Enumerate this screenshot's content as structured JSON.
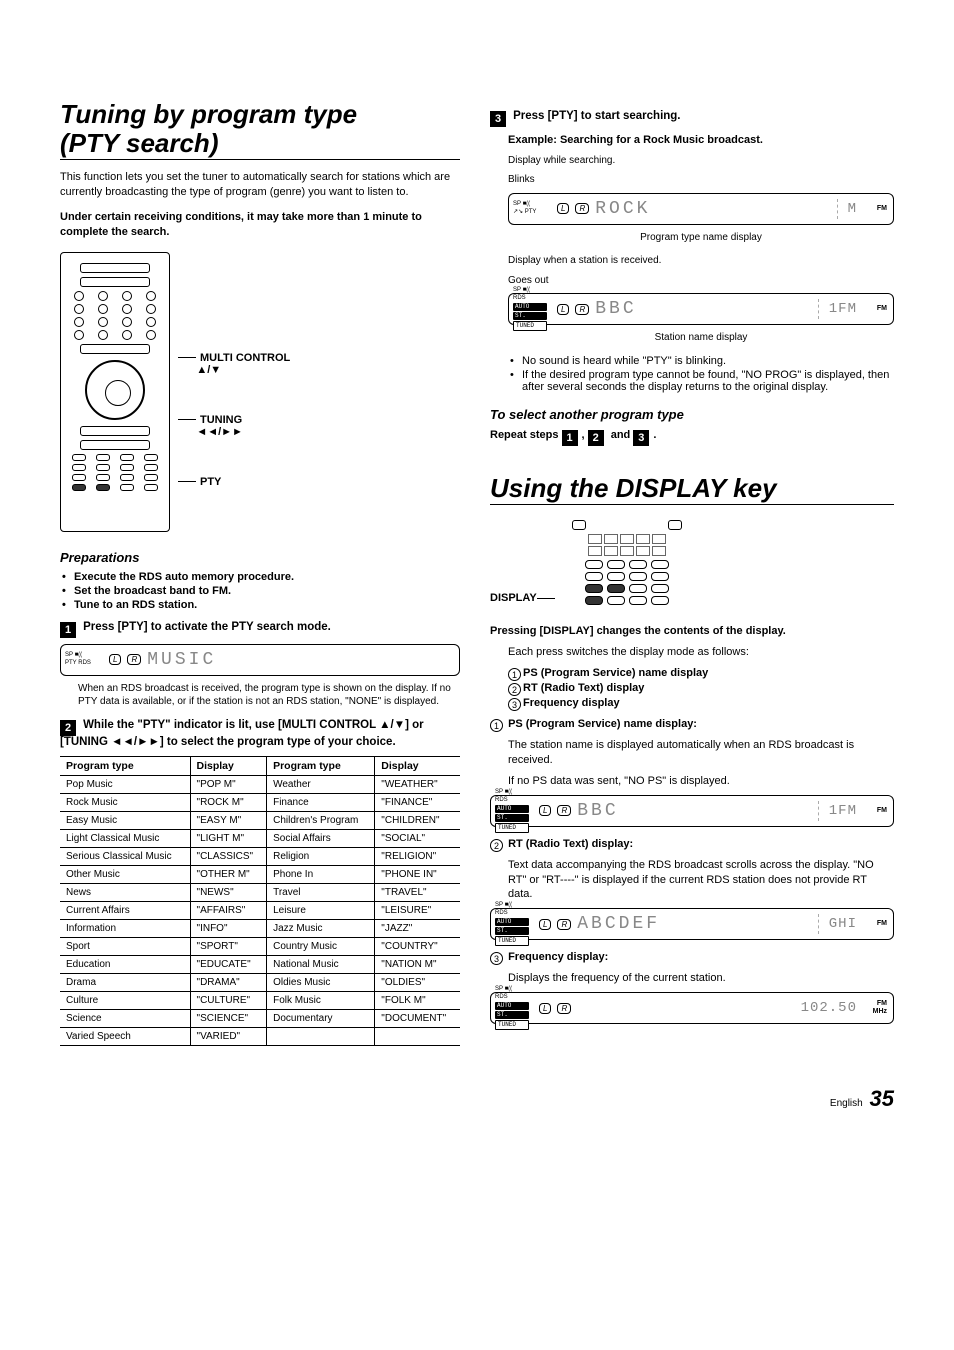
{
  "left": {
    "h1_line1": "Tuning by program type",
    "h1_line2": "(PTY search)",
    "intro": "This function lets you set the tuner to automatically search for stations which are currently broadcasting the type of program (genre) you want to listen to.",
    "warn": "Under certain receiving conditions, it may take more than 1 minute to complete the search.",
    "remote_labels": {
      "multi": "MULTI CONTROL",
      "multi_glyph": "▲/▼",
      "tuning": "TUNING",
      "tuning_glyph": "◄◄/►►",
      "pty": "PTY"
    },
    "prep_h": "Preparations",
    "prep_items": [
      "Execute the RDS auto memory procedure.",
      "Set the broadcast band to FM.",
      "Tune to an RDS station."
    ],
    "step1": "Press [PTY] to activate the PTY search mode.",
    "lcd1_ind_top": "SP ■((",
    "lcd1_pty": "PTY",
    "lcd1_rds": "RDS",
    "lcd1_seg": "MUSIC",
    "step1_note": "When an RDS broadcast is received, the program type is shown on the display. If no PTY data is available, or if the station is not an RDS station, \"NONE\" is displayed.",
    "step2_a": "While the \"PTY\" indicator is lit, use [MULTI CONTROL ",
    "step2_b": "] or [TUNING ",
    "step2_c": "] to select the program type of your choice.",
    "step2_glyph1": "▲/▼",
    "step2_glyph2": "◄◄/►►",
    "table_headers": [
      "Program type",
      "Display",
      "Program type",
      "Display"
    ],
    "table_rows": [
      [
        "Pop Music",
        "\"POP M\"",
        "Weather",
        "\"WEATHER\""
      ],
      [
        "Rock Music",
        "\"ROCK M\"",
        "Finance",
        "\"FINANCE\""
      ],
      [
        "Easy Music",
        "\"EASY M\"",
        "Children's Program",
        "\"CHILDREN\""
      ],
      [
        "Light Classical Music",
        "\"LIGHT M\"",
        "Social Affairs",
        "\"SOCIAL\""
      ],
      [
        "Serious Classical Music",
        "\"CLASSICS\"",
        "Religion",
        "\"RELIGION\""
      ],
      [
        "Other Music",
        "\"OTHER M\"",
        "Phone In",
        "\"PHONE IN\""
      ],
      [
        "News",
        "\"NEWS\"",
        "Travel",
        "\"TRAVEL\""
      ],
      [
        "Current Affairs",
        "\"AFFAIRS\"",
        "Leisure",
        "\"LEISURE\""
      ],
      [
        "Information",
        "\"INFO\"",
        "Jazz Music",
        "\"JAZZ\""
      ],
      [
        "Sport",
        "\"SPORT\"",
        "Country Music",
        "\"COUNTRY\""
      ],
      [
        "Education",
        "\"EDUCATE\"",
        "National Music",
        "\"NATION M\""
      ],
      [
        "Drama",
        "\"DRAMA\"",
        "Oldies Music",
        "\"OLDIES\""
      ],
      [
        "Culture",
        "\"CULTURE\"",
        "Folk Music",
        "\"FOLK M\""
      ],
      [
        "Science",
        "\"SCIENCE\"",
        "Documentary",
        "\"DOCUMENT\""
      ],
      [
        "Varied Speech",
        "\"VARIED\"",
        "",
        ""
      ]
    ]
  },
  "right": {
    "step3": "Press [PTY] to start searching.",
    "example": "Example: Searching for a Rock Music broadcast.",
    "searching_label": "Display while searching.",
    "blinks": "Blinks",
    "lcd_search_seg": "ROCK",
    "lcd_search_right": "M",
    "lcd_search_caption": "Program type name display",
    "received_label": "Display when a station is received.",
    "goesout": "Goes out",
    "lcd_recv_seg": "BBC",
    "lcd_recv_right": "1FM",
    "lcd_recv_caption": "Station name display",
    "recv_bullets": [
      "No sound is heard while \"PTY\" is blinking.",
      "If the desired program type cannot be found, \"NO PROG\" is displayed, then after several seconds the display returns to the original display."
    ],
    "select_another_h": "To select another program type",
    "repeat": "Repeat steps ",
    "repeat_and": " and ",
    "repeat_period": ".",
    "h1_display": "Using the DISPLAY key",
    "display_label": "DISPLAY",
    "pressing_h": "Pressing [DISPLAY] changes the contents of the display.",
    "each_press": "Each press switches the display mode as follows:",
    "modes": [
      "PS (Program Service) name display",
      "RT (Radio Text) display",
      "Frequency display"
    ],
    "mode1_h": "PS (Program Service) name display:",
    "mode1_p1": "The station name is displayed automatically when an RDS broadcast is received.",
    "mode1_p2": "If no PS data was sent, \"NO PS\" is displayed.",
    "lcd_ps_seg": "BBC",
    "lcd_ps_right": "1FM",
    "mode2_h": "RT (Radio Text) display:",
    "mode2_p": "Text data accompanying the RDS broadcast scrolls across the display. \"NO RT\" or \"RT----\" is displayed if the current RDS station does not provide RT data.",
    "lcd_rt_seg": "ABCDEF",
    "lcd_rt_right": "GHI",
    "mode3_h": "Frequency display:",
    "mode3_p": "Displays the frequency of the current station.",
    "lcd_freq_seg": " ",
    "lcd_freq_right": "102.50",
    "lcd_ind": {
      "sp": "SP ■((",
      "rds": "RDS",
      "auto": "AUTO",
      "st": "ST.",
      "tuned": "TUNED",
      "fm": "FM",
      "mhz": "MHz"
    }
  },
  "foot": {
    "lang": "English",
    "page": "35"
  }
}
